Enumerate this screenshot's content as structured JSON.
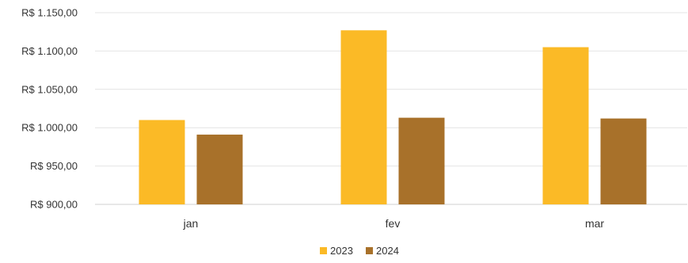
{
  "chart_data": {
    "type": "bar",
    "categories": [
      "jan",
      "fev",
      "mar"
    ],
    "series": [
      {
        "name": "2023",
        "values": [
          1010,
          1127,
          1105
        ],
        "color": "#FBBA26"
      },
      {
        "name": "2024",
        "values": [
          991,
          1013,
          1012
        ],
        "color": "#A8712A"
      }
    ],
    "ylim": [
      900,
      1150
    ],
    "yticks": [
      900,
      950,
      1000,
      1050,
      1100,
      1150
    ],
    "ytick_labels": [
      "R$ 900,00",
      "R$ 950,00",
      "R$ 1.000,00",
      "R$ 1.050,00",
      "R$ 1.100,00",
      "R$ 1.150,00"
    ],
    "grid": true,
    "legend_position": "bottom-center",
    "title": "",
    "xlabel": "",
    "ylabel": ""
  }
}
